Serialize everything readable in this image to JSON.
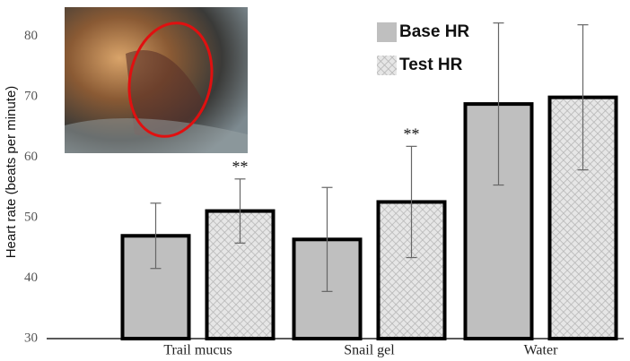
{
  "chart_data": {
    "type": "bar",
    "y_label": "Heart rate (beats per minute)",
    "categories": [
      "Trail mucus",
      "Snail gel",
      "Water"
    ],
    "series": [
      {
        "name": "Base HR",
        "color": "#bfbfbf",
        "pattern": "solid",
        "values": [
          47.0,
          46.4,
          68.8
        ],
        "errors": [
          5.4,
          8.6,
          13.4
        ],
        "annotations": [
          null,
          null,
          null
        ]
      },
      {
        "name": "Test HR",
        "color": "#d4d4d4",
        "pattern": "crosshatch",
        "values": [
          51.1,
          52.6,
          69.9
        ],
        "errors": [
          5.3,
          9.2,
          12.0
        ],
        "annotations": [
          "**",
          "**",
          null
        ]
      }
    ],
    "ylim": [
      30,
      86
    ],
    "yticks": [
      30,
      40,
      50,
      60,
      70,
      80
    ],
    "grid": false,
    "inset": {
      "label": "shell"
    }
  }
}
